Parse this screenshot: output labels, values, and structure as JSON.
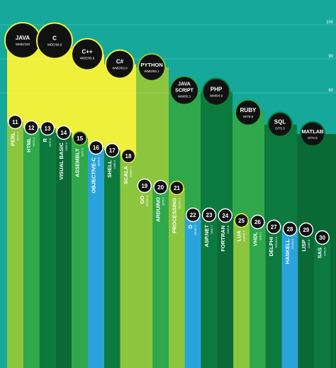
{
  "chart_data": {
    "type": "bar",
    "y_ticks": [
      "100",
      "90",
      "80"
    ],
    "ylim": [
      0,
      100
    ],
    "legend": "none",
    "grid": true,
    "colors": {
      "background": "#15a89b",
      "yellow": "#eef03c",
      "light_green": "#8cc63f",
      "mid_green": "#2ea84a",
      "dark_green": "#0c7a3e",
      "darker_green": "#096a35",
      "blue": "#2aa3dc",
      "circle": "#111111"
    },
    "top_languages": [
      {
        "name": "JAVA",
        "label": "WMD/100",
        "value": 100
      },
      {
        "name": "C",
        "label": "WDE/99.9",
        "value": 99.9
      },
      {
        "name": "C++",
        "label": "WDE/95.9",
        "value": 95.9
      },
      {
        "name": "C#",
        "label": "WMD/93.0",
        "value": 93.0
      },
      {
        "name": "PYTHON",
        "label": "WMD/92.1",
        "value": 92.1
      },
      {
        "name": "JAVA SCRIPT",
        "label": "WM/85.3",
        "value": 85.3
      },
      {
        "name": "PHP",
        "label": "WM/84.9",
        "value": 84.9
      },
      {
        "name": "RUBY",
        "label": "W/78.8",
        "value": 78.8
      },
      {
        "name": "SQL",
        "label": "D/75.3",
        "value": 75.3
      },
      {
        "name": "MATLAB",
        "label": "D/72.5",
        "value": 72.5
      }
    ],
    "other_languages": [
      {
        "rank": "11",
        "name": "PERL",
        "label": "W/71.4"
      },
      {
        "rank": "12",
        "name": "HTML",
        "label": "W/70.4"
      },
      {
        "rank": "13",
        "name": "R",
        "label": "D/70.0"
      },
      {
        "rank": "14",
        "name": "VISUAL BASIC",
        "label": "D/69.0"
      },
      {
        "rank": "15",
        "name": "ASSEMBLY",
        "label": "E/67.6"
      },
      {
        "rank": "16",
        "name": "OBJECTIVE-C",
        "label": "M/66.8"
      },
      {
        "rank": "17",
        "name": "SHELL",
        "label": "D/65.5"
      },
      {
        "rank": "18",
        "name": "SCALA",
        "label": "WM/62.7"
      },
      {
        "rank": "19",
        "name": "GO",
        "label": "WD/55.6"
      },
      {
        "rank": "20",
        "name": "ARDUINO",
        "label": "E/55.5"
      },
      {
        "rank": "21",
        "name": "PROCESSING",
        "label": "WD/53.2"
      },
      {
        "rank": "22",
        "name": "D",
        "label": "DE/47.7"
      },
      {
        "rank": "23",
        "name": "ASP.NET",
        "label": "W/47.7"
      },
      {
        "rank": "24",
        "name": "FORTRAN",
        "label": "D/46.8"
      },
      {
        "rank": "25",
        "name": "LUA",
        "label": "WM/46.6"
      },
      {
        "rank": "26",
        "name": "VHDL",
        "label": "E/43.1"
      },
      {
        "rank": "27",
        "name": "DELPHI",
        "label": "WD/43.0"
      },
      {
        "rank": "28",
        "name": "HASKELL",
        "label": "DE/40.8"
      },
      {
        "rank": "29",
        "name": "LISP",
        "label": "D/40.8"
      },
      {
        "rank": "30",
        "name": "SAS",
        "label": "D/40.5"
      }
    ]
  }
}
